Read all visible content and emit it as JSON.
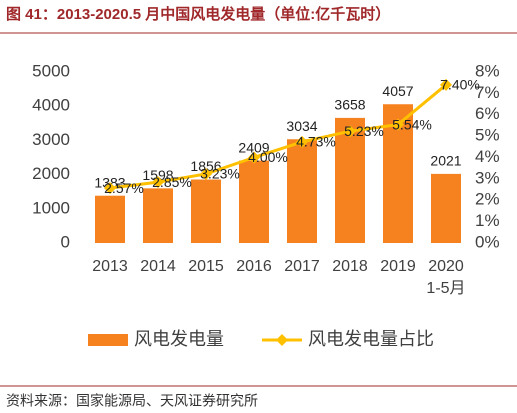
{
  "chart_data": {
    "type": "bar-line",
    "title": "图 41：2013-2020.5 月中国风电发电量（单位:亿千瓦时）",
    "source": "资料来源：国家能源局、天风证券研究所",
    "categories": [
      "2013",
      "2014",
      "2015",
      "2016",
      "2017",
      "2018",
      "2019",
      "2020\n1-5月"
    ],
    "series": [
      {
        "name": "风电发电量",
        "type": "bar",
        "color": "#f5821f",
        "values": [
          1383,
          1598,
          1856,
          2409,
          3034,
          3658,
          4057,
          2021
        ]
      },
      {
        "name": "风电发电量占比",
        "type": "line",
        "axis": "y2",
        "color": "#ffc000",
        "values": [
          2.57,
          2.85,
          3.23,
          4.0,
          4.73,
          5.23,
          5.54,
          7.4
        ],
        "value_labels": [
          "2.57%",
          "2.85%",
          "3.23%",
          "4.00%",
          "4.73%",
          "5.23%",
          "5.54%",
          "7.40%"
        ]
      }
    ],
    "ylim": [
      0,
      5000
    ],
    "yticks": [
      0,
      1000,
      2000,
      3000,
      4000,
      5000
    ],
    "y2lim": [
      0,
      8
    ],
    "y2ticks": [
      {
        "value": 0,
        "label": "0%"
      },
      {
        "value": 1,
        "label": "1%"
      },
      {
        "value": 2,
        "label": "2%"
      },
      {
        "value": 3,
        "label": "3%"
      },
      {
        "value": 4,
        "label": "4%"
      },
      {
        "value": 5,
        "label": "5%"
      },
      {
        "value": 6,
        "label": "6%"
      },
      {
        "value": 7,
        "label": "7%"
      },
      {
        "value": 8,
        "label": "8%"
      }
    ],
    "legend": "bottom"
  }
}
